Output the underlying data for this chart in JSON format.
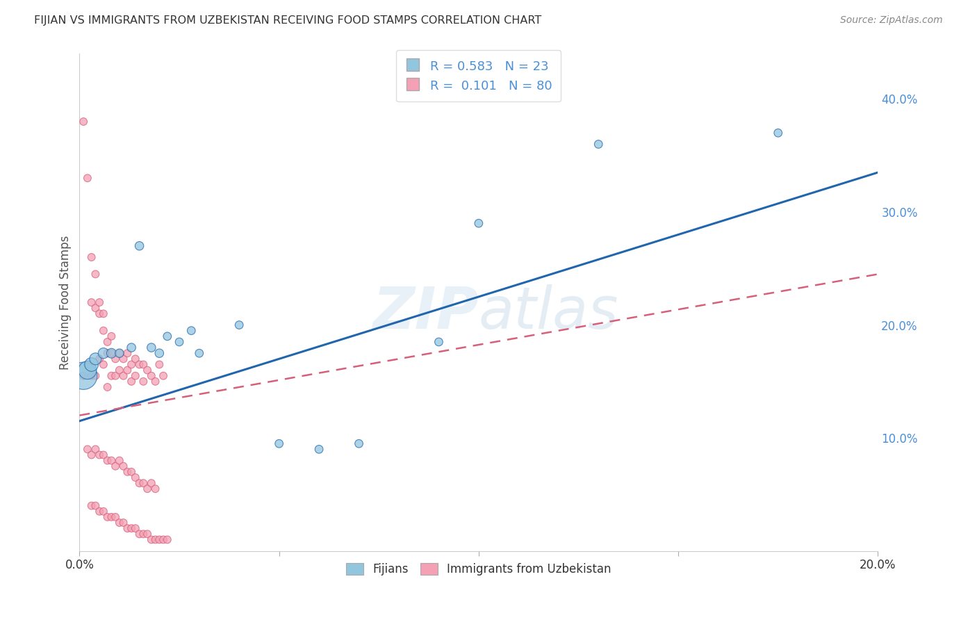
{
  "title": "FIJIAN VS IMMIGRANTS FROM UZBEKISTAN RECEIVING FOOD STAMPS CORRELATION CHART",
  "source": "Source: ZipAtlas.com",
  "ylabel": "Receiving Food Stamps",
  "xlim": [
    0.0,
    0.2
  ],
  "ylim": [
    0.0,
    0.44
  ],
  "x_ticks": [
    0.0,
    0.05,
    0.1,
    0.15,
    0.2
  ],
  "x_tick_labels": [
    "0.0%",
    "",
    "",
    "",
    "20.0%"
  ],
  "y_ticks_right": [
    0.1,
    0.2,
    0.3,
    0.4
  ],
  "y_tick_labels_right": [
    "10.0%",
    "20.0%",
    "30.0%",
    "40.0%"
  ],
  "watermark": "ZIPatlas",
  "blue_color": "#92c5de",
  "pink_color": "#f4a0b5",
  "blue_line_color": "#2166ac",
  "pink_line_color": "#d6607a",
  "legend_text_color": "#4a90d9",
  "title_color": "#333333",
  "grid_color": "#c8c8c8",
  "fijians_x": [
    0.001,
    0.002,
    0.003,
    0.004,
    0.006,
    0.008,
    0.01,
    0.013,
    0.015,
    0.018,
    0.02,
    0.022,
    0.025,
    0.028,
    0.03,
    0.04,
    0.05,
    0.06,
    0.07,
    0.09,
    0.1,
    0.13,
    0.175
  ],
  "fijians_y": [
    0.155,
    0.16,
    0.165,
    0.17,
    0.175,
    0.175,
    0.175,
    0.18,
    0.27,
    0.18,
    0.175,
    0.19,
    0.185,
    0.195,
    0.175,
    0.2,
    0.095,
    0.09,
    0.095,
    0.185,
    0.29,
    0.36,
    0.37
  ],
  "fijians_size": [
    800,
    350,
    200,
    150,
    120,
    100,
    80,
    80,
    80,
    80,
    80,
    70,
    70,
    70,
    70,
    70,
    70,
    70,
    70,
    70,
    70,
    70,
    70
  ],
  "uzbek_x": [
    0.001,
    0.001,
    0.002,
    0.002,
    0.003,
    0.003,
    0.003,
    0.004,
    0.004,
    0.004,
    0.005,
    0.005,
    0.005,
    0.006,
    0.006,
    0.006,
    0.007,
    0.007,
    0.007,
    0.008,
    0.008,
    0.008,
    0.009,
    0.009,
    0.01,
    0.01,
    0.011,
    0.011,
    0.012,
    0.012,
    0.013,
    0.013,
    0.014,
    0.014,
    0.015,
    0.016,
    0.016,
    0.017,
    0.018,
    0.019,
    0.02,
    0.021,
    0.002,
    0.003,
    0.004,
    0.005,
    0.006,
    0.007,
    0.008,
    0.009,
    0.01,
    0.011,
    0.012,
    0.013,
    0.014,
    0.015,
    0.016,
    0.017,
    0.018,
    0.019,
    0.003,
    0.004,
    0.005,
    0.006,
    0.007,
    0.008,
    0.009,
    0.01,
    0.011,
    0.012,
    0.013,
    0.014,
    0.015,
    0.016,
    0.017,
    0.018,
    0.019,
    0.02,
    0.021,
    0.022
  ],
  "uzbek_y": [
    0.38,
    0.155,
    0.33,
    0.165,
    0.26,
    0.22,
    0.155,
    0.245,
    0.215,
    0.155,
    0.22,
    0.21,
    0.17,
    0.21,
    0.195,
    0.165,
    0.185,
    0.175,
    0.145,
    0.19,
    0.175,
    0.155,
    0.17,
    0.155,
    0.175,
    0.16,
    0.17,
    0.155,
    0.175,
    0.16,
    0.165,
    0.15,
    0.17,
    0.155,
    0.165,
    0.165,
    0.15,
    0.16,
    0.155,
    0.15,
    0.165,
    0.155,
    0.09,
    0.085,
    0.09,
    0.085,
    0.085,
    0.08,
    0.08,
    0.075,
    0.08,
    0.075,
    0.07,
    0.07,
    0.065,
    0.06,
    0.06,
    0.055,
    0.06,
    0.055,
    0.04,
    0.04,
    0.035,
    0.035,
    0.03,
    0.03,
    0.03,
    0.025,
    0.025,
    0.02,
    0.02,
    0.02,
    0.015,
    0.015,
    0.015,
    0.01,
    0.01,
    0.01,
    0.01,
    0.01
  ],
  "uzbek_size": [
    60,
    60,
    60,
    60,
    60,
    60,
    60,
    60,
    60,
    60,
    60,
    60,
    60,
    60,
    60,
    60,
    60,
    60,
    60,
    60,
    60,
    60,
    60,
    60,
    60,
    60,
    60,
    60,
    60,
    60,
    60,
    60,
    60,
    60,
    60,
    60,
    60,
    60,
    60,
    60,
    60,
    60,
    60,
    60,
    60,
    60,
    60,
    60,
    60,
    60,
    60,
    60,
    60,
    60,
    60,
    60,
    60,
    60,
    60,
    60,
    60,
    60,
    60,
    60,
    60,
    60,
    60,
    60,
    60,
    60,
    60,
    60,
    60,
    60,
    60,
    60,
    60,
    60,
    60,
    60
  ],
  "blue_trend": [
    0.0,
    0.2,
    0.115,
    0.335
  ],
  "pink_trend": [
    0.0,
    0.2,
    0.12,
    0.245
  ]
}
